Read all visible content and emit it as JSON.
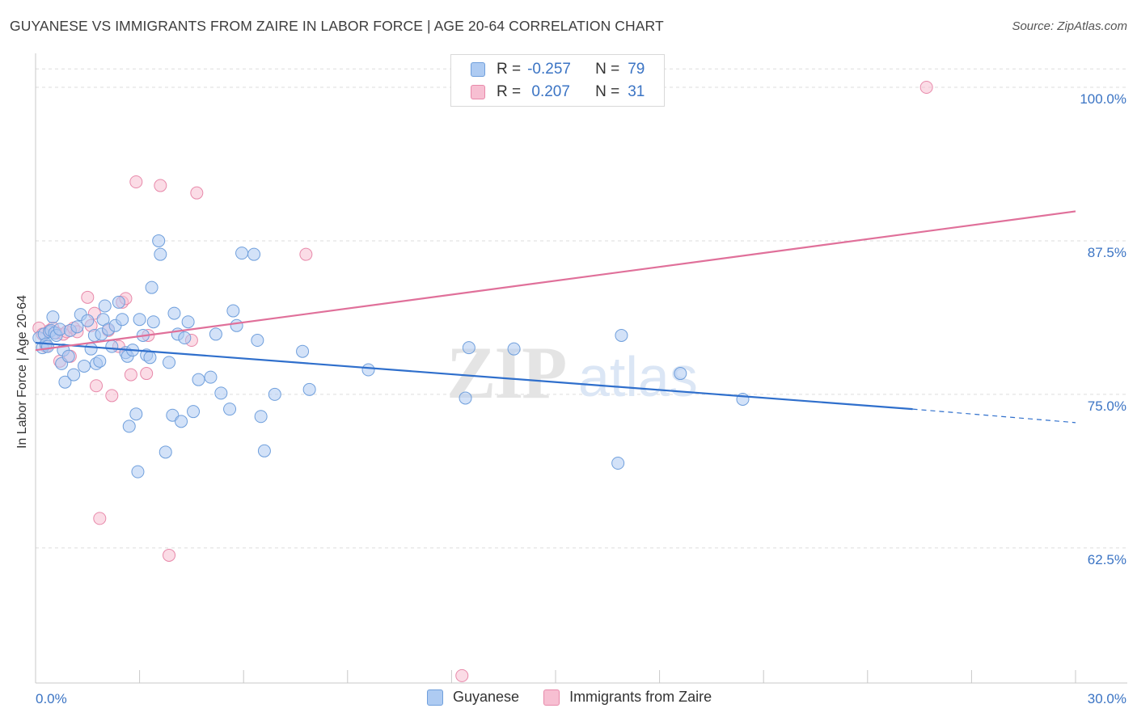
{
  "title": "GUYANESE VS IMMIGRANTS FROM ZAIRE IN LABOR FORCE | AGE 20-64 CORRELATION CHART",
  "source": "Source: ZipAtlas.com",
  "watermark": {
    "zip": "ZIP",
    "atlas": "atlas"
  },
  "legend": {
    "series1": {
      "r_label": "R =",
      "r_value": "-0.257",
      "n_label": "N =",
      "n_value": "79"
    },
    "series2": {
      "r_label": "R =",
      "r_value": " 0.207",
      "n_label": "N =",
      "n_value": "31"
    }
  },
  "bottom_legend": {
    "series1": "Guyanese",
    "series2": "Immigrants from Zaire"
  },
  "colors": {
    "blue_fill": "#aecbf2",
    "blue_stroke": "#6f9fdc",
    "blue_line": "#2f6fcc",
    "pink_fill": "#f7bfd2",
    "pink_stroke": "#e889aa",
    "pink_line": "#e0709a",
    "tick_label": "#3b74c4",
    "grid": "#dedede"
  },
  "chart_data": {
    "type": "scatter",
    "title": "GUYANESE VS IMMIGRANTS FROM ZAIRE IN LABOR FORCE | AGE 20-64 CORRELATION CHART",
    "xlabel": "",
    "ylabel": "In Labor Force | Age 20-64",
    "xlim": [
      0,
      30
    ],
    "ylim": [
      51.5,
      102.5
    ],
    "x_tick_labels": [
      "0.0%",
      "30.0%"
    ],
    "y_ticks": [
      62.5,
      75.0,
      87.5,
      100.0
    ],
    "y_tick_labels": [
      "62.5%",
      "75.0%",
      "87.5%",
      "100.0%"
    ],
    "grid": true,
    "series": [
      {
        "name": "Guyanese",
        "r": -0.257,
        "n": 79,
        "trend": {
          "x0": 0.0,
          "y0": 79.2,
          "x1": 25.3,
          "y1": 73.8,
          "dash_x1": 30.0,
          "dash_y1": 72.7
        },
        "points": [
          [
            0.1,
            79.6
          ],
          [
            0.2,
            78.8
          ],
          [
            0.25,
            79.9
          ],
          [
            0.3,
            79.1
          ],
          [
            0.35,
            78.9
          ],
          [
            0.4,
            80.1
          ],
          [
            0.45,
            80.2
          ],
          [
            0.5,
            81.3
          ],
          [
            0.55,
            80.0
          ],
          [
            0.6,
            79.8
          ],
          [
            0.7,
            80.3
          ],
          [
            0.75,
            77.5
          ],
          [
            0.8,
            78.6
          ],
          [
            0.85,
            76.0
          ],
          [
            0.95,
            78.1
          ],
          [
            1.0,
            80.2
          ],
          [
            1.1,
            76.6
          ],
          [
            1.2,
            80.5
          ],
          [
            1.3,
            81.5
          ],
          [
            1.4,
            77.3
          ],
          [
            1.5,
            81.0
          ],
          [
            1.6,
            78.7
          ],
          [
            1.7,
            79.8
          ],
          [
            1.75,
            77.5
          ],
          [
            1.85,
            77.7
          ],
          [
            1.9,
            79.9
          ],
          [
            1.95,
            81.1
          ],
          [
            2.0,
            82.2
          ],
          [
            2.1,
            80.3
          ],
          [
            2.2,
            78.9
          ],
          [
            2.3,
            80.6
          ],
          [
            2.4,
            82.5
          ],
          [
            2.5,
            81.1
          ],
          [
            2.6,
            78.4
          ],
          [
            2.65,
            78.1
          ],
          [
            2.7,
            72.4
          ],
          [
            2.8,
            78.6
          ],
          [
            2.9,
            73.4
          ],
          [
            2.95,
            68.7
          ],
          [
            3.0,
            81.1
          ],
          [
            3.1,
            79.8
          ],
          [
            3.2,
            78.2
          ],
          [
            3.3,
            78.0
          ],
          [
            3.35,
            83.7
          ],
          [
            3.4,
            80.9
          ],
          [
            3.55,
            87.5
          ],
          [
            3.6,
            86.4
          ],
          [
            3.75,
            70.3
          ],
          [
            3.85,
            77.6
          ],
          [
            3.95,
            73.3
          ],
          [
            4.0,
            81.6
          ],
          [
            4.1,
            79.9
          ],
          [
            4.2,
            72.8
          ],
          [
            4.3,
            79.6
          ],
          [
            4.4,
            80.9
          ],
          [
            4.55,
            73.6
          ],
          [
            4.7,
            76.2
          ],
          [
            5.05,
            76.4
          ],
          [
            5.2,
            79.9
          ],
          [
            5.35,
            75.1
          ],
          [
            5.6,
            73.8
          ],
          [
            5.7,
            81.8
          ],
          [
            5.8,
            80.6
          ],
          [
            5.95,
            86.5
          ],
          [
            6.3,
            86.4
          ],
          [
            6.4,
            79.4
          ],
          [
            6.5,
            73.2
          ],
          [
            6.6,
            70.4
          ],
          [
            6.9,
            75.0
          ],
          [
            7.7,
            78.5
          ],
          [
            7.9,
            75.4
          ],
          [
            9.6,
            77.0
          ],
          [
            12.4,
            74.7
          ],
          [
            12.5,
            78.8
          ],
          [
            13.8,
            78.7
          ],
          [
            16.8,
            69.4
          ],
          [
            16.9,
            79.8
          ],
          [
            18.6,
            76.7
          ],
          [
            20.4,
            74.6
          ]
        ]
      },
      {
        "name": "Immigrants from Zaire",
        "r": 0.207,
        "n": 31,
        "trend": {
          "x0": 0.0,
          "y0": 78.6,
          "x1": 30.0,
          "y1": 89.9
        },
        "points": [
          [
            0.1,
            80.4
          ],
          [
            0.2,
            79.9
          ],
          [
            0.3,
            78.9
          ],
          [
            0.4,
            80.2
          ],
          [
            0.5,
            80.4
          ],
          [
            0.6,
            80.0
          ],
          [
            0.7,
            77.7
          ],
          [
            0.8,
            79.9
          ],
          [
            0.9,
            80.1
          ],
          [
            1.0,
            78.1
          ],
          [
            1.1,
            80.4
          ],
          [
            1.2,
            80.1
          ],
          [
            1.5,
            82.9
          ],
          [
            1.6,
            80.6
          ],
          [
            1.7,
            81.6
          ],
          [
            1.75,
            75.7
          ],
          [
            1.85,
            64.9
          ],
          [
            2.1,
            80.2
          ],
          [
            2.2,
            74.9
          ],
          [
            2.4,
            78.9
          ],
          [
            2.5,
            82.5
          ],
          [
            2.6,
            82.8
          ],
          [
            2.75,
            76.6
          ],
          [
            2.9,
            92.3
          ],
          [
            3.2,
            76.7
          ],
          [
            3.25,
            79.8
          ],
          [
            3.6,
            92.0
          ],
          [
            3.85,
            61.9
          ],
          [
            4.5,
            79.4
          ],
          [
            4.65,
            91.4
          ],
          [
            7.8,
            86.4
          ]
        ],
        "extra_points": [
          [
            12.3,
            52.1
          ],
          [
            25.7,
            100.0
          ]
        ]
      }
    ]
  }
}
